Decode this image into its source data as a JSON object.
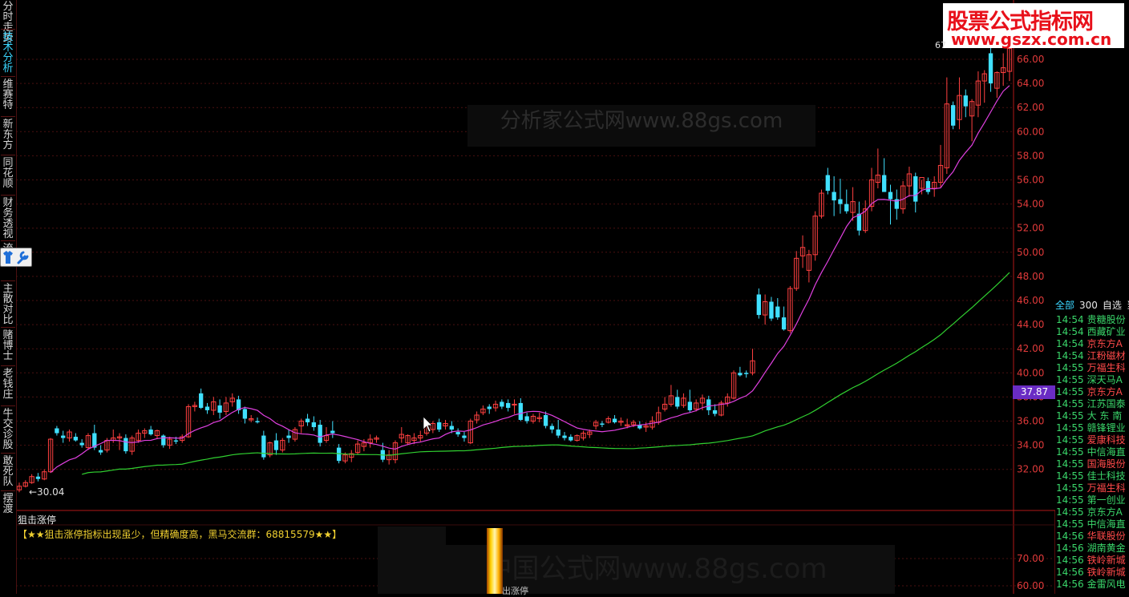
{
  "left_tabs": [
    {
      "label": "分时走势",
      "active": false
    },
    {
      "label": "技术分析",
      "active": true
    },
    {
      "label": "维赛特",
      "active": false
    },
    {
      "label": "新东方",
      "active": false
    },
    {
      "label": "同花顺",
      "active": false
    },
    {
      "label": "财务透视",
      "active": false
    },
    {
      "label": "流",
      "active": false
    },
    {
      "label": "主散对比",
      "active": false
    },
    {
      "label": "赌博士",
      "active": false
    },
    {
      "label": "老钱庄",
      "active": false
    },
    {
      "label": "牛交诊股",
      "active": false
    },
    {
      "label": "敢死队",
      "active": false
    },
    {
      "label": "摆渡",
      "active": false
    }
  ],
  "tool_icons": [
    "shirt-icon",
    "wrench-icon"
  ],
  "logo": {
    "top": "股票公式指标网",
    "bottom": "www.gszx.com.cn"
  },
  "watermark_top": "分析家公式网www.88gs.com",
  "watermark_bottom": "中国公式网www.88gs.com",
  "top_value": "67",
  "low_value": "←30.04",
  "current_price": "37.87",
  "indicator": {
    "title": "狙击涨停",
    "note": "【★★狙击涨停指标出现虽少，但精确度高，黑马交流群：68815579★★】",
    "signal_label": "出涨停"
  },
  "stock_tabs": [
    "全部",
    "300",
    "自选",
    "当"
  ],
  "stock_rows": [
    {
      "time": "14:54",
      "name": "贵糖股份",
      "color": "#3ad66a"
    },
    {
      "time": "14:54",
      "name": "西藏矿业",
      "color": "#3ad66a"
    },
    {
      "time": "14:54",
      "name": "京东方A",
      "color": "#ff4a4a"
    },
    {
      "time": "14:54",
      "name": "江粉磁材",
      "color": "#ff4a4a"
    },
    {
      "time": "14:55",
      "name": "万福生科",
      "color": "#ff4a4a"
    },
    {
      "time": "14:55",
      "name": "深天马A",
      "color": "#3ad66a"
    },
    {
      "time": "14:55",
      "name": "京东方A",
      "color": "#ff4a4a"
    },
    {
      "time": "14:55",
      "name": "江苏国泰",
      "color": "#3ad66a"
    },
    {
      "time": "14:55",
      "name": "大 东 南",
      "color": "#3ad66a"
    },
    {
      "time": "14:55",
      "name": "赣锋锂业",
      "color": "#3ad66a"
    },
    {
      "time": "14:55",
      "name": "爱康科技",
      "color": "#ff4a4a"
    },
    {
      "time": "14:55",
      "name": "中信海直",
      "color": "#3ad66a"
    },
    {
      "time": "14:55",
      "name": "国海股份",
      "color": "#ff4a4a"
    },
    {
      "time": "14:55",
      "name": "佳士科技",
      "color": "#3ad66a"
    },
    {
      "time": "14:55",
      "name": "万福生科",
      "color": "#ff4a4a"
    },
    {
      "time": "14:55",
      "name": "第一创业",
      "color": "#3ad66a"
    },
    {
      "time": "14:55",
      "name": "京东方A",
      "color": "#3ad66a"
    },
    {
      "time": "14:55",
      "name": "中信海直",
      "color": "#3ad66a"
    },
    {
      "time": "14:56",
      "name": "华联股份",
      "color": "#ff4a4a"
    },
    {
      "time": "14:56",
      "name": "湖南黄金",
      "color": "#3ad66a"
    },
    {
      "time": "14:56",
      "name": "铁岭新城",
      "color": "#ff4a4a"
    },
    {
      "time": "14:56",
      "name": "铁岭新城",
      "color": "#ff4a4a"
    },
    {
      "time": "14:56",
      "name": "金雷风电",
      "color": "#3ad66a"
    }
  ],
  "chart_data": {
    "type": "candlestick",
    "y_ticks": [
      "66.00",
      "64.00",
      "62.00",
      "60.00",
      "58.00",
      "56.00",
      "54.00",
      "52.00",
      "50.00",
      "48.00",
      "46.00",
      "44.00",
      "42.00",
      "40.00",
      "38.00",
      "36.00",
      "34.00",
      "32.00"
    ],
    "y_range": [
      30,
      67
    ],
    "indicator_ticks": [
      "70.00",
      "60.00"
    ],
    "colors": {
      "up": "#ff4040",
      "down": "#40e0ff",
      "ma_short": "#e040e0",
      "ma_long": "#30d030",
      "grid": "#4a1010",
      "axis": "#b01818"
    },
    "candles": [
      [
        30.3,
        30.9,
        30.1,
        30.6
      ],
      [
        30.6,
        31.1,
        30.5,
        30.9
      ],
      [
        30.9,
        31.6,
        30.8,
        31.4
      ],
      [
        31.4,
        31.7,
        31.0,
        31.2
      ],
      [
        31.2,
        32.0,
        31.1,
        31.8
      ],
      [
        31.8,
        34.6,
        31.7,
        34.5
      ],
      [
        35.4,
        35.6,
        34.8,
        35.0
      ],
      [
        34.8,
        35.2,
        34.2,
        34.6
      ],
      [
        34.6,
        35.3,
        34.3,
        35.1
      ],
      [
        34.7,
        35.0,
        34.3,
        34.4
      ],
      [
        34.2,
        34.5,
        33.8,
        34.0
      ],
      [
        33.8,
        35.0,
        33.6,
        34.8
      ],
      [
        35.0,
        35.7,
        33.6,
        33.8
      ],
      [
        33.6,
        34.0,
        33.2,
        33.4
      ],
      [
        33.6,
        34.6,
        33.4,
        34.4
      ],
      [
        34.4,
        35.3,
        34.2,
        34.6
      ],
      [
        34.6,
        35.0,
        33.6,
        34.7
      ],
      [
        34.6,
        34.9,
        33.3,
        33.5
      ],
      [
        33.5,
        34.8,
        33.2,
        34.6
      ],
      [
        34.4,
        35.3,
        34.2,
        35.0
      ],
      [
        35.0,
        35.4,
        34.6,
        35.2
      ],
      [
        35.3,
        35.6,
        34.8,
        34.9
      ],
      [
        34.8,
        35.3,
        34.5,
        35.2
      ],
      [
        34.8,
        34.9,
        33.8,
        34.0
      ],
      [
        34.0,
        34.7,
        33.7,
        34.5
      ],
      [
        34.4,
        34.7,
        34.1,
        34.3
      ],
      [
        34.4,
        34.9,
        34.2,
        34.7
      ],
      [
        34.7,
        37.4,
        34.6,
        37.2
      ],
      [
        37.2,
        37.6,
        36.8,
        37.3
      ],
      [
        38.3,
        38.7,
        37.0,
        37.1
      ],
      [
        37.2,
        37.5,
        36.6,
        36.9
      ],
      [
        36.9,
        38.0,
        36.5,
        37.6
      ],
      [
        37.3,
        37.8,
        36.2,
        36.7
      ],
      [
        36.8,
        38.0,
        36.5,
        37.5
      ],
      [
        37.6,
        38.3,
        37.2,
        37.9
      ],
      [
        37.8,
        38.1,
        36.6,
        36.9
      ],
      [
        37.0,
        37.2,
        35.8,
        36.2
      ],
      [
        36.1,
        36.5,
        35.9,
        36.2
      ],
      [
        36.0,
        36.3,
        35.8,
        35.9
      ],
      [
        34.8,
        35.2,
        32.8,
        33.0
      ],
      [
        33.2,
        34.3,
        33.0,
        34.2
      ],
      [
        34.4,
        35.0,
        33.2,
        33.6
      ],
      [
        33.6,
        34.6,
        33.4,
        34.4
      ],
      [
        34.8,
        35.3,
        34.2,
        34.6
      ],
      [
        34.5,
        35.5,
        34.3,
        35.3
      ],
      [
        35.6,
        36.2,
        35.0,
        36.0
      ],
      [
        36.2,
        36.6,
        35.6,
        35.9
      ],
      [
        35.9,
        36.4,
        35.2,
        35.5
      ],
      [
        35.7,
        36.1,
        33.9,
        34.2
      ],
      [
        34.4,
        35.5,
        34.2,
        34.8
      ],
      [
        35.2,
        36.0,
        34.6,
        35.0
      ],
      [
        33.8,
        34.1,
        32.5,
        32.7
      ],
      [
        32.7,
        33.4,
        32.5,
        33.2
      ],
      [
        33.0,
        33.6,
        32.6,
        33.3
      ],
      [
        33.4,
        34.4,
        33.2,
        34.1
      ],
      [
        33.9,
        34.5,
        33.5,
        34.2
      ],
      [
        34.2,
        34.9,
        33.8,
        34.5
      ],
      [
        34.5,
        34.8,
        34.2,
        34.6
      ],
      [
        33.6,
        34.2,
        32.6,
        32.8
      ],
      [
        32.8,
        33.6,
        32.4,
        33.2
      ],
      [
        32.8,
        34.4,
        32.5,
        34.2
      ],
      [
        34.6,
        35.5,
        34.2,
        34.9
      ],
      [
        34.2,
        34.9,
        34.0,
        34.8
      ],
      [
        34.4,
        35.0,
        34.1,
        34.6
      ],
      [
        34.6,
        35.2,
        34.3,
        34.8
      ],
      [
        35.0,
        35.8,
        34.8,
        35.6
      ],
      [
        35.3,
        36.0,
        35.0,
        35.8
      ],
      [
        35.9,
        36.2,
        35.1,
        35.3
      ],
      [
        35.6,
        36.1,
        35.3,
        35.8
      ],
      [
        35.6,
        36.0,
        35.0,
        35.3
      ],
      [
        35.1,
        35.4,
        34.7,
        34.9
      ],
      [
        34.8,
        35.1,
        34.3,
        34.6
      ],
      [
        34.2,
        36.2,
        34.1,
        36.0
      ],
      [
        36.1,
        36.8,
        35.8,
        36.5
      ],
      [
        36.7,
        37.3,
        36.5,
        37.0
      ],
      [
        37.2,
        37.4,
        36.6,
        37.0
      ],
      [
        37.1,
        37.7,
        36.8,
        37.4
      ],
      [
        37.6,
        37.8,
        37.0,
        37.2
      ],
      [
        37.5,
        37.8,
        36.8,
        37.1
      ],
      [
        37.4,
        37.8,
        36.6,
        37.4
      ],
      [
        37.5,
        37.9,
        36.0,
        36.1
      ],
      [
        36.4,
        36.7,
        35.8,
        36.0
      ],
      [
        36.0,
        36.6,
        35.8,
        36.4
      ],
      [
        36.2,
        36.7,
        35.9,
        36.3
      ],
      [
        36.5,
        36.8,
        35.4,
        35.6
      ],
      [
        35.6,
        35.8,
        35.0,
        35.3
      ],
      [
        35.3,
        36.1,
        34.6,
        34.8
      ],
      [
        34.8,
        35.1,
        34.4,
        34.6
      ],
      [
        34.7,
        34.9,
        34.3,
        34.4
      ],
      [
        34.4,
        34.9,
        34.3,
        34.8
      ],
      [
        34.6,
        35.2,
        34.4,
        35.0
      ],
      [
        34.9,
        35.3,
        34.6,
        35.1
      ],
      [
        35.6,
        36.1,
        35.3,
        35.9
      ],
      [
        35.8,
        36.0,
        35.5,
        35.7
      ],
      [
        35.9,
        36.4,
        35.8,
        36.2
      ],
      [
        36.2,
        36.5,
        35.8,
        35.9
      ],
      [
        35.9,
        36.3,
        35.6,
        36.0
      ],
      [
        35.6,
        36.2,
        35.4,
        35.7
      ],
      [
        35.7,
        36.1,
        35.5,
        35.9
      ],
      [
        35.7,
        36.0,
        35.3,
        35.4
      ],
      [
        35.5,
        35.9,
        35.1,
        35.6
      ],
      [
        35.5,
        36.4,
        35.3,
        36.0
      ],
      [
        35.9,
        37.2,
        35.7,
        36.7
      ],
      [
        37.0,
        38.0,
        36.8,
        37.4
      ],
      [
        37.4,
        39.0,
        37.2,
        38.1
      ],
      [
        38.0,
        38.6,
        37.0,
        37.2
      ],
      [
        37.3,
        38.3,
        37.1,
        37.9
      ],
      [
        37.6,
        38.6,
        36.7,
        36.9
      ],
      [
        37.0,
        37.8,
        36.8,
        37.5
      ],
      [
        37.5,
        38.2,
        36.9,
        37.9
      ],
      [
        37.8,
        38.1,
        36.5,
        36.9
      ],
      [
        36.9,
        37.4,
        36.4,
        36.6
      ],
      [
        36.5,
        37.7,
        36.4,
        37.5
      ],
      [
        37.5,
        38.3,
        37.2,
        38.0
      ],
      [
        37.9,
        40.2,
        37.8,
        40.0
      ],
      [
        40.0,
        40.5,
        39.7,
        39.8
      ],
      [
        40.0,
        40.2,
        39.6,
        39.9
      ],
      [
        40.0,
        42.0,
        39.8,
        41.0
      ],
      [
        46.5,
        47.0,
        44.5,
        44.8
      ],
      [
        44.8,
        46.5,
        44.0,
        45.9
      ],
      [
        45.9,
        46.3,
        44.3,
        44.5
      ],
      [
        45.5,
        46.2,
        44.4,
        44.6
      ],
      [
        44.6,
        45.5,
        43.5,
        43.6
      ],
      [
        43.5,
        47.2,
        43.3,
        47.0
      ],
      [
        47.0,
        50.1,
        46.8,
        49.5
      ],
      [
        49.7,
        51.4,
        48.7,
        50.4
      ],
      [
        48.5,
        50.2,
        47.5,
        49.8
      ],
      [
        49.8,
        53.4,
        49.3,
        53.0
      ],
      [
        53.0,
        55.2,
        52.8,
        54.9
      ],
      [
        56.4,
        57.0,
        54.8,
        55.1
      ],
      [
        55.0,
        56.3,
        53.0,
        54.3
      ],
      [
        54.4,
        56.1,
        53.2,
        54.0
      ],
      [
        54.0,
        55.2,
        53.2,
        53.4
      ],
      [
        53.3,
        55.4,
        52.6,
        54.2
      ],
      [
        53.2,
        54.2,
        51.4,
        51.8
      ],
      [
        51.8,
        54.3,
        51.6,
        53.6
      ],
      [
        53.8,
        57.0,
        53.4,
        56.0
      ],
      [
        55.8,
        58.6,
        55.3,
        56.4
      ],
      [
        56.4,
        57.8,
        55.0,
        55.0
      ],
      [
        55.0,
        55.6,
        52.3,
        54.4
      ],
      [
        54.4,
        55.2,
        52.7,
        53.6
      ],
      [
        53.6,
        55.9,
        53.2,
        55.5
      ],
      [
        55.5,
        57.1,
        54.6,
        56.5
      ],
      [
        56.3,
        56.6,
        53.3,
        54.2
      ],
      [
        55.3,
        56.0,
        54.8,
        56.2
      ],
      [
        55.9,
        56.2,
        54.8,
        55.0
      ],
      [
        55.3,
        56.3,
        54.6,
        55.8
      ],
      [
        55.8,
        58.9,
        55.4,
        57.2
      ],
      [
        57.0,
        64.5,
        56.5,
        62.3
      ],
      [
        62.2,
        62.5,
        60.2,
        60.5
      ],
      [
        61.0,
        64.5,
        60.2,
        63.0
      ],
      [
        63.0,
        63.5,
        61.2,
        62.1
      ],
      [
        61.3,
        62.7,
        59.2,
        62.5
      ],
      [
        62.2,
        65.0,
        61.2,
        64.2
      ],
      [
        64.2,
        65.1,
        62.4,
        64.8
      ],
      [
        66.5,
        67.2,
        63.3,
        64.0
      ],
      [
        63.6,
        65.0,
        62.8,
        64.9
      ],
      [
        64.9,
        66.5,
        63.8,
        65.3
      ],
      [
        65.0,
        67.0,
        64.2,
        66.9
      ]
    ]
  }
}
